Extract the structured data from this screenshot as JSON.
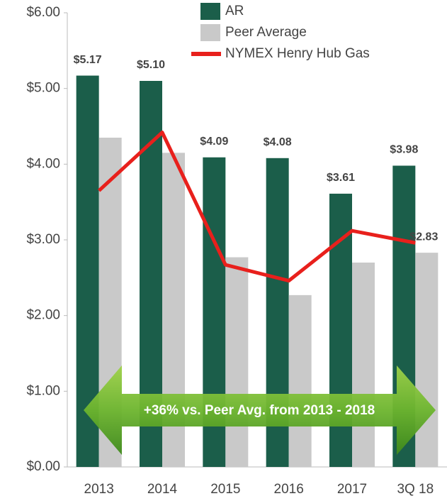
{
  "chart_data": {
    "type": "bar",
    "categories": [
      "2013",
      "2014",
      "2015",
      "2016",
      "2017",
      "3Q 18"
    ],
    "series": [
      {
        "name": "AR",
        "type": "bar",
        "color": "#1b5e4a",
        "values": [
          5.17,
          5.1,
          4.09,
          4.08,
          3.61,
          3.98
        ],
        "value_labels": [
          "$5.17",
          "$5.10",
          "$4.09",
          "$4.08",
          "$3.61",
          "$3.98"
        ]
      },
      {
        "name": "Peer Average",
        "type": "bar",
        "color": "#c9c9c9",
        "values": [
          4.35,
          4.15,
          2.77,
          2.27,
          2.7,
          2.83
        ],
        "value_labels": [
          null,
          null,
          null,
          null,
          null,
          "$2.83"
        ]
      },
      {
        "name": "NYMEX Henry Hub Gas",
        "type": "line",
        "color": "#e8201c",
        "values": [
          3.65,
          4.42,
          2.67,
          2.46,
          3.12,
          2.96
        ]
      }
    ],
    "ylim": [
      0,
      6
    ],
    "yticks": [
      {
        "value": 0,
        "label": "$0.00"
      },
      {
        "value": 1,
        "label": "$1.00"
      },
      {
        "value": 2,
        "label": "$2.00"
      },
      {
        "value": 3,
        "label": "$3.00"
      },
      {
        "value": 4,
        "label": "$4.00"
      },
      {
        "value": 5,
        "label": "$5.00"
      },
      {
        "value": 6,
        "label": "$6.00"
      }
    ],
    "annotation": "+36% vs. Peer Avg. from 2013 - 2018"
  }
}
